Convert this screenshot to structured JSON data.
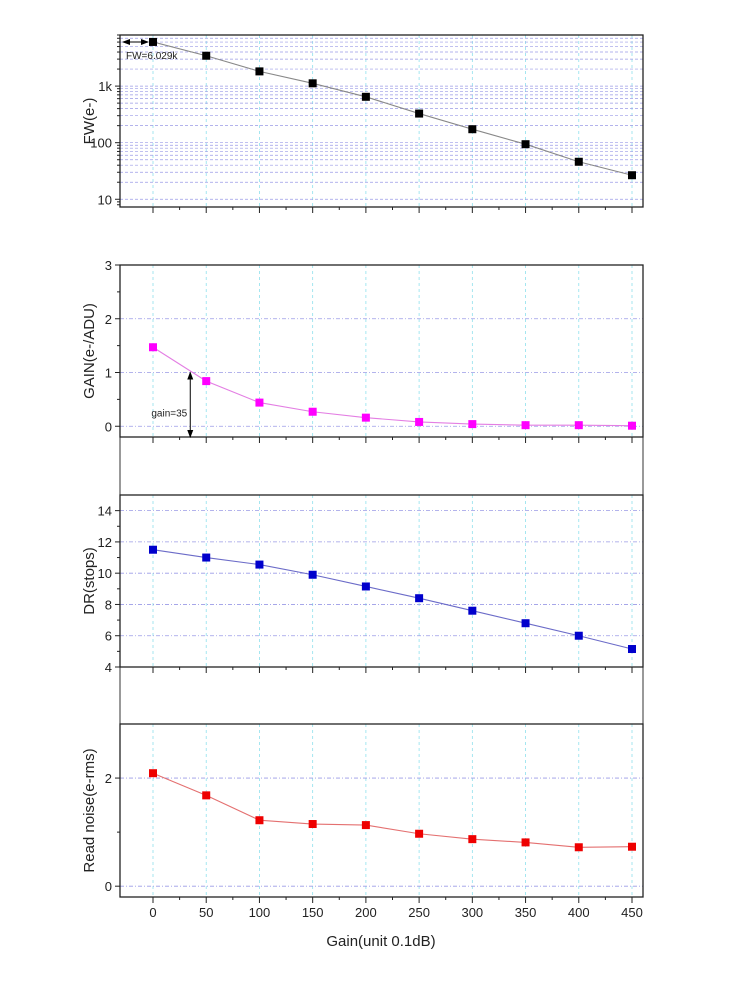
{
  "chart_data": [
    {
      "type": "line",
      "ylabel": "FW(e-)",
      "yscale": "log",
      "ylim": [
        7.3,
        8000
      ],
      "yticks": [
        10,
        100,
        1000
      ],
      "ytick_labels": [
        "10",
        "100",
        "1k"
      ],
      "x": [
        0,
        50,
        100,
        150,
        200,
        250,
        300,
        350,
        400,
        450
      ],
      "values": [
        6029,
        3440,
        1820,
        1120,
        647,
        327,
        173,
        94,
        46,
        26.6
      ],
      "color": "#000000",
      "line_color": "#888888",
      "annotation": {
        "text": "FW=6.029k",
        "x": 0,
        "y": 6029
      }
    },
    {
      "type": "line",
      "ylabel": "GAIN(e-/ADU)",
      "ylim": [
        -0.2,
        3
      ],
      "yticks": [
        0,
        1,
        2,
        3
      ],
      "ytick_labels": [
        "0",
        "1",
        "2",
        "3"
      ],
      "x": [
        0,
        50,
        100,
        150,
        200,
        250,
        300,
        350,
        400,
        450
      ],
      "values": [
        1.47,
        0.84,
        0.44,
        0.27,
        0.16,
        0.08,
        0.04,
        0.02,
        0.02,
        0.01
      ],
      "color": "#ff00ff",
      "line_color": "#e37ee3",
      "annotation": {
        "text": "gain=35",
        "x": 35,
        "y": 1
      }
    },
    {
      "type": "line",
      "ylabel": "DR(stops)",
      "ylim": [
        4,
        15
      ],
      "yticks": [
        4,
        6,
        8,
        10,
        12,
        14
      ],
      "ytick_labels": [
        "4",
        "6",
        "8",
        "10",
        "12",
        "14"
      ],
      "x": [
        0,
        50,
        100,
        150,
        200,
        250,
        300,
        350,
        400,
        450
      ],
      "values": [
        11.5,
        11.0,
        10.55,
        9.9,
        9.15,
        8.4,
        7.6,
        6.8,
        6.0,
        5.15
      ],
      "color": "#0000cc",
      "line_color": "#6b6bc8"
    },
    {
      "type": "line",
      "ylabel": "Read noise(e-rms)",
      "ylim": [
        -0.2,
        3
      ],
      "yticks": [
        0,
        2
      ],
      "ytick_labels": [
        "0",
        "2"
      ],
      "x": [
        0,
        50,
        100,
        150,
        200,
        250,
        300,
        350,
        400,
        450
      ],
      "values": [
        2.09,
        1.68,
        1.22,
        1.15,
        1.13,
        0.97,
        0.87,
        0.81,
        0.72,
        0.73
      ],
      "color": "#ee0000",
      "line_color": "#e47070"
    }
  ],
  "xaxis": {
    "label": "Gain(unit 0.1dB)",
    "xlim": [
      -30,
      460
    ],
    "ticks": [
      0,
      50,
      100,
      150,
      200,
      250,
      300,
      350,
      400,
      450
    ],
    "tick_labels": [
      "0",
      "50",
      "100",
      "150",
      "200",
      "250",
      "300",
      "350",
      "400",
      "450"
    ]
  }
}
